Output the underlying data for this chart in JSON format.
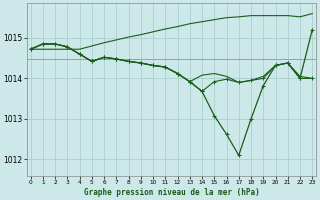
{
  "title": "Graphe pression niveau de la mer (hPa)",
  "bg_color": "#cce8e8",
  "grid_color": "#aad0d0",
  "line_color": "#1a5c1a",
  "red_line_color": "#cc6666",
  "hours": [
    0,
    1,
    2,
    3,
    4,
    5,
    6,
    7,
    8,
    9,
    10,
    11,
    12,
    13,
    14,
    15,
    16,
    17,
    18,
    19,
    20,
    21,
    22,
    23
  ],
  "line_upper": [
    1014.72,
    1014.72,
    1014.72,
    1014.72,
    1014.72,
    1014.8,
    1014.88,
    1014.95,
    1015.02,
    1015.08,
    1015.15,
    1015.22,
    1015.28,
    1015.35,
    1015.4,
    1015.45,
    1015.5,
    1015.52,
    1015.55,
    1015.55,
    1015.55,
    1015.55,
    1015.52,
    1015.6
  ],
  "line_main": [
    1014.72,
    1014.85,
    1014.85,
    1014.78,
    1014.6,
    1014.42,
    1014.52,
    1014.48,
    1014.42,
    1014.38,
    1014.32,
    1014.28,
    1014.12,
    1013.92,
    1013.68,
    1013.08,
    1012.62,
    1012.1,
    1013.0,
    1013.82,
    1014.32,
    1014.38,
    1014.0,
    1015.2
  ],
  "line_mid1": [
    1014.72,
    1014.85,
    1014.85,
    1014.78,
    1014.6,
    1014.42,
    1014.52,
    1014.48,
    1014.42,
    1014.38,
    1014.32,
    1014.28,
    1014.12,
    1013.92,
    1013.68,
    1013.92,
    1013.98,
    1013.9,
    1013.95,
    1014.0,
    1014.32,
    1014.38,
    1014.0,
    1014.0
  ],
  "line_mid2": [
    1014.72,
    1014.85,
    1014.85,
    1014.78,
    1014.6,
    1014.42,
    1014.52,
    1014.48,
    1014.42,
    1014.38,
    1014.32,
    1014.28,
    1014.12,
    1013.92,
    1014.08,
    1014.12,
    1014.05,
    1013.9,
    1013.95,
    1014.05,
    1014.32,
    1014.38,
    1014.05,
    1014.0
  ],
  "yticks": [
    1012,
    1013,
    1014,
    1015
  ],
  "ylim": [
    1011.6,
    1015.85
  ],
  "xlim": [
    -0.3,
    23.3
  ],
  "red_y": 1014.47
}
